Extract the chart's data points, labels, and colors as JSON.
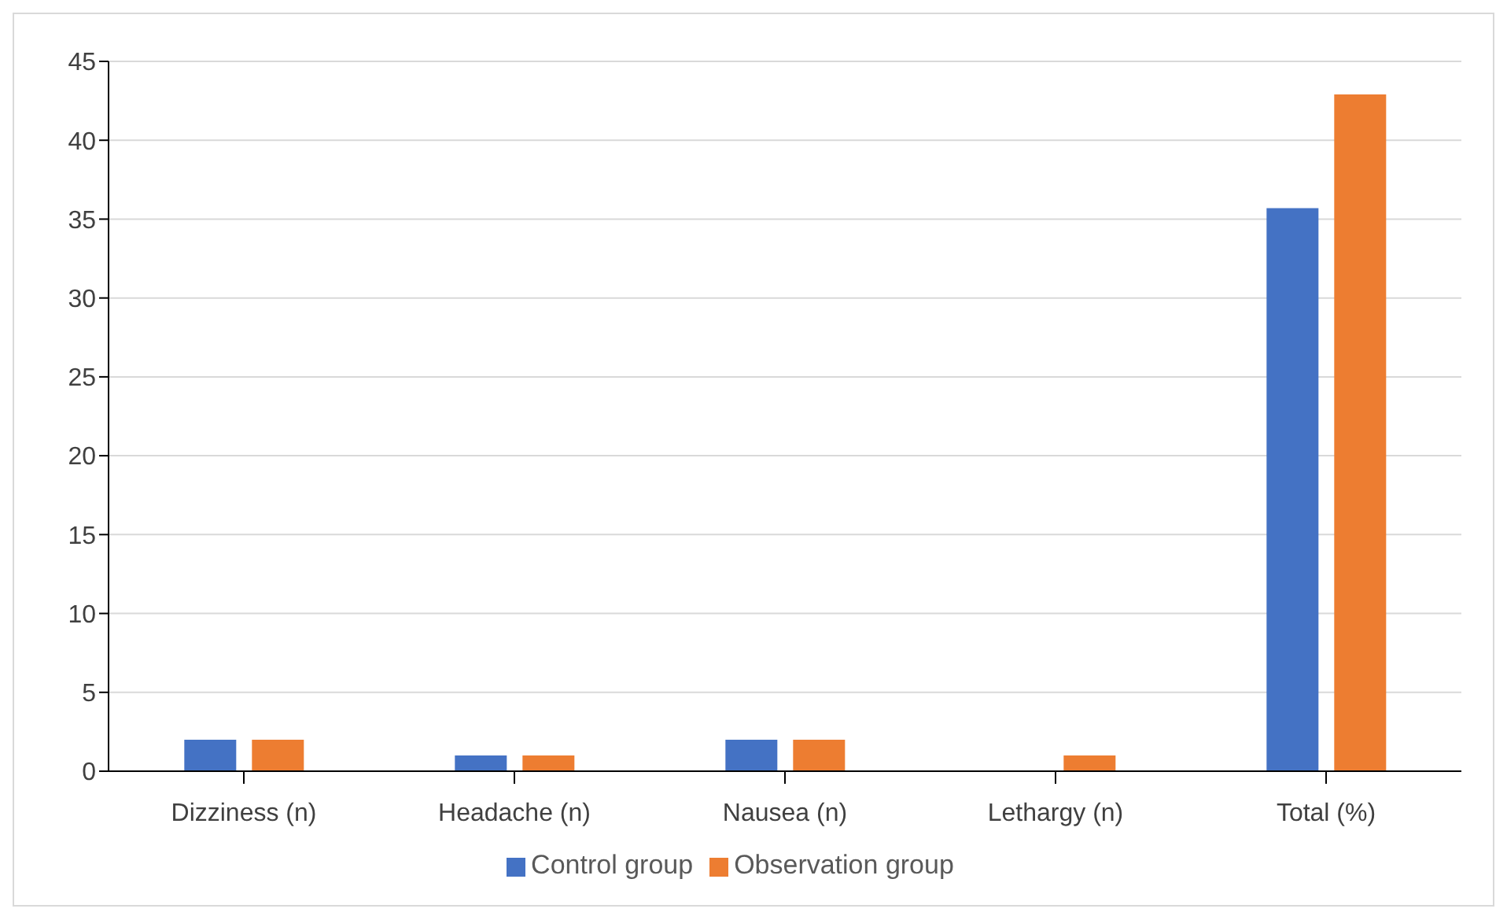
{
  "chart_data": {
    "type": "bar",
    "categories": [
      "Dizziness (n)",
      "Headache (n)",
      "Nausea (n)",
      "Lethargy (n)",
      "Total (%)"
    ],
    "series": [
      {
        "name": "Control group",
        "color": "#4472c4",
        "values": [
          2,
          1,
          2,
          0,
          35.7
        ]
      },
      {
        "name": "Observation group",
        "color": "#ed7d31",
        "values": [
          2,
          1,
          2,
          1,
          42.9
        ]
      }
    ],
    "ylim": [
      0,
      45
    ],
    "yticks": [
      0,
      5,
      10,
      15,
      20,
      25,
      30,
      35,
      40,
      45
    ],
    "grid": "y",
    "legend": "bottom"
  }
}
